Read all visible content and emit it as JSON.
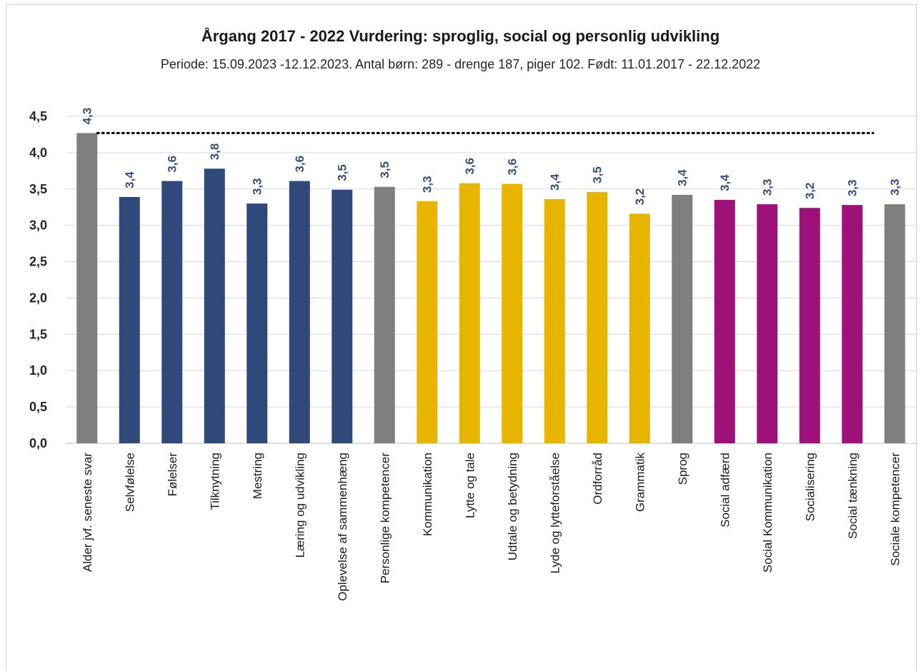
{
  "chart_data": {
    "type": "bar",
    "title": "Årgang 2017 - 2022 Vurdering: sproglig, social og personlig udvikling",
    "subtitle": "Periode: 15.09.2023 -12.12.2023. Antal børn:  289 - drenge 187, piger 102. Født: 11.01.2017 - 22.12.2022",
    "ylim": [
      0,
      4.5
    ],
    "yticks": [
      "0,0",
      "0,5",
      "1,0",
      "1,5",
      "2,0",
      "2,5",
      "3,0",
      "3,5",
      "4,0",
      "4,5"
    ],
    "grid": true,
    "reference_line": {
      "value": 4.27,
      "style": "dotted",
      "color": "#000000"
    },
    "categories": [
      "Alder jvf. seneste svar",
      "Selvfølelse",
      "Følelser",
      "Tilknytning",
      "Mestring",
      "Læring og udvikling",
      "Oplevelse af sammenhæng",
      "Personlige kompetencer",
      "Kommunikation",
      "Lytte og tale",
      "Udtale og betydning",
      "Lyde og lytteforståelse",
      "Ordforråd",
      "Grammatik",
      "Sprog",
      "Social adfærd",
      "Social Kommunikation",
      "Socialisering",
      "Social tænkning",
      "Sociale kompetencer"
    ],
    "values": [
      4.27,
      3.39,
      3.61,
      3.78,
      3.3,
      3.61,
      3.49,
      3.53,
      3.33,
      3.58,
      3.57,
      3.36,
      3.46,
      3.16,
      3.42,
      3.35,
      3.29,
      3.24,
      3.28,
      3.29
    ],
    "data_labels": [
      "4,3",
      "3,4",
      "3,6",
      "3,8",
      "3,3",
      "3,6",
      "3,5",
      "3,5",
      "3,3",
      "3,6",
      "3,6",
      "3,4",
      "3,5",
      "3,2",
      "3,4",
      "3,4",
      "3,3",
      "3,2",
      "3,3",
      "3,3"
    ],
    "bar_colors": [
      "#7f7f7f",
      "#2f4a7a",
      "#2f4a7a",
      "#2f4a7a",
      "#2f4a7a",
      "#2f4a7a",
      "#2f4a7a",
      "#7f7f7f",
      "#e8b500",
      "#e8b500",
      "#e8b500",
      "#e8b500",
      "#e8b500",
      "#e8b500",
      "#7f7f7f",
      "#9e1179",
      "#9e1179",
      "#9e1179",
      "#9e1179",
      "#7f7f7f"
    ],
    "colors": {
      "grey": "#7f7f7f",
      "personal": "#2f4a7a",
      "language": "#e8b500",
      "social": "#9e1179",
      "label": "#3a4f7a"
    }
  }
}
